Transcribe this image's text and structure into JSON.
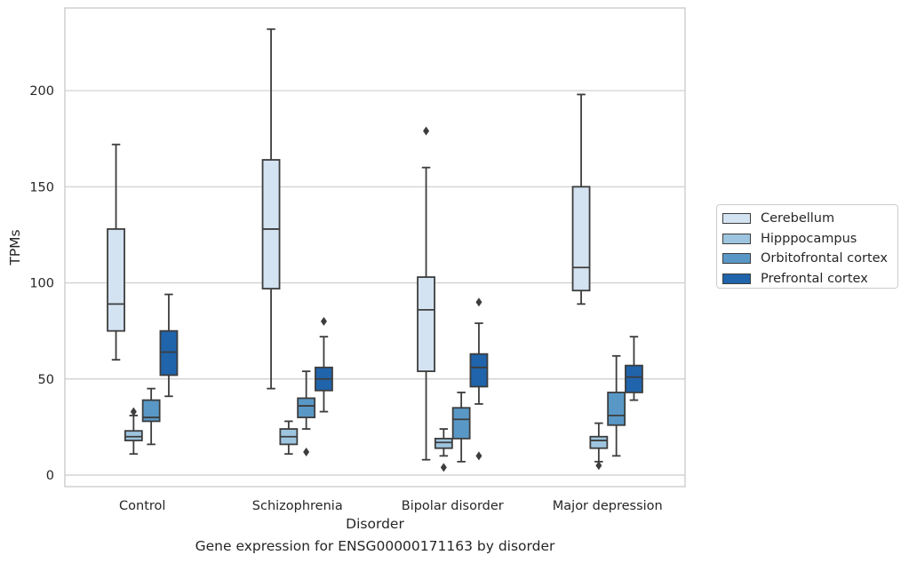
{
  "chart_data": {
    "type": "box",
    "xlabel": "Disorder",
    "ylabel": "TPMs",
    "caption": "Gene expression for ENSG00000171163 by disorder",
    "ylim": [
      -6,
      243
    ],
    "yticks": [
      0,
      50,
      100,
      150,
      200
    ],
    "grid": "horizontal",
    "legend_position": "right",
    "categories": [
      "Control",
      "Schizophrenia",
      "Bipolar disorder",
      "Major depression"
    ],
    "series": [
      {
        "name": "Cerebellum",
        "color": "#d4e3f2",
        "boxes": [
          {
            "whislo": 60,
            "q1": 75,
            "med": 89,
            "q3": 128,
            "whishi": 172,
            "fliers": []
          },
          {
            "whislo": 45,
            "q1": 97,
            "med": 128,
            "q3": 164,
            "whishi": 232,
            "fliers": []
          },
          {
            "whislo": 8,
            "q1": 54,
            "med": 86,
            "q3": 103,
            "whishi": 160,
            "fliers": [
              179
            ]
          },
          {
            "whislo": 89,
            "q1": 96,
            "med": 108,
            "q3": 150,
            "whishi": 198,
            "fliers": []
          }
        ]
      },
      {
        "name": "Hipppocampus",
        "color": "#9ec5df",
        "boxes": [
          {
            "whislo": 11,
            "q1": 18,
            "med": 20,
            "q3": 23,
            "whishi": 31,
            "fliers": [
              33
            ]
          },
          {
            "whislo": 11,
            "q1": 16,
            "med": 20,
            "q3": 24,
            "whishi": 28,
            "fliers": []
          },
          {
            "whislo": 10,
            "q1": 14,
            "med": 17,
            "q3": 19,
            "whishi": 24,
            "fliers": [
              4
            ]
          },
          {
            "whislo": 7,
            "q1": 14,
            "med": 18,
            "q3": 20,
            "whishi": 27,
            "fliers": [
              5
            ]
          }
        ]
      },
      {
        "name": "Orbitofrontal cortex",
        "color": "#5998c6",
        "boxes": [
          {
            "whislo": 16,
            "q1": 28,
            "med": 30,
            "q3": 39,
            "whishi": 45,
            "fliers": []
          },
          {
            "whislo": 24,
            "q1": 30,
            "med": 36,
            "q3": 40,
            "whishi": 54,
            "fliers": [
              12
            ]
          },
          {
            "whislo": 7,
            "q1": 19,
            "med": 29,
            "q3": 35,
            "whishi": 43,
            "fliers": []
          },
          {
            "whislo": 10,
            "q1": 26,
            "med": 31,
            "q3": 43,
            "whishi": 62,
            "fliers": []
          }
        ]
      },
      {
        "name": "Prefrontal cortex",
        "color": "#2064ab",
        "boxes": [
          {
            "whislo": 41,
            "q1": 52,
            "med": 64,
            "q3": 75,
            "whishi": 94,
            "fliers": []
          },
          {
            "whislo": 33,
            "q1": 44,
            "med": 50,
            "q3": 56,
            "whishi": 72,
            "fliers": [
              80
            ]
          },
          {
            "whislo": 37,
            "q1": 46,
            "med": 56,
            "q3": 63,
            "whishi": 79,
            "fliers": [
              90,
              10
            ]
          },
          {
            "whislo": 39,
            "q1": 43,
            "med": 51,
            "q3": 57,
            "whishi": 72,
            "fliers": []
          }
        ]
      }
    ]
  }
}
